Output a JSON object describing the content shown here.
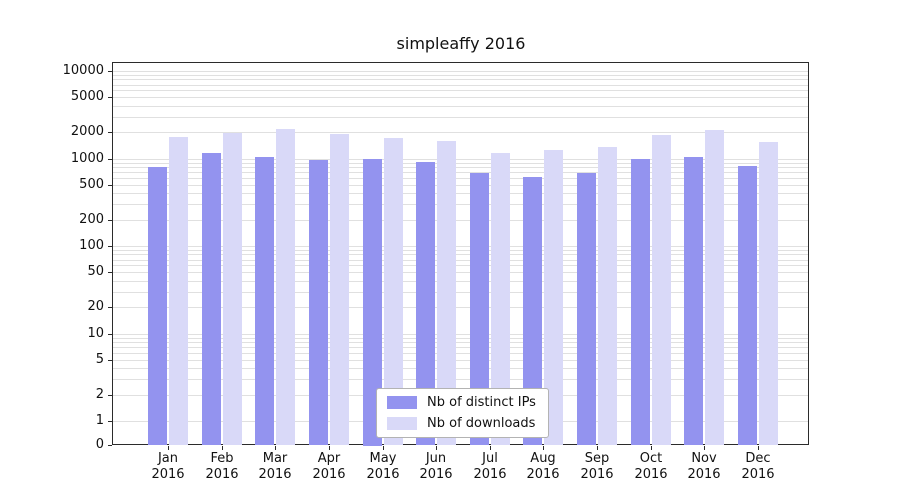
{
  "chart_data": {
    "type": "bar",
    "title": "simpleaffy 2016",
    "months": [
      "Jan",
      "Feb",
      "Mar",
      "Apr",
      "May",
      "Jun",
      "Jul",
      "Aug",
      "Sep",
      "Oct",
      "Nov",
      "Dec"
    ],
    "year_label": "2016",
    "series": [
      {
        "name": "Nb of distinct IPs",
        "color": "#9393ef",
        "values": [
          800,
          1150,
          1050,
          960,
          1000,
          920,
          680,
          620,
          690,
          990,
          1050,
          820
        ]
      },
      {
        "name": "Nb of downloads",
        "color": "#d9d9f8",
        "values": [
          1750,
          1950,
          2150,
          1900,
          1700,
          1600,
          1150,
          1250,
          1350,
          1850,
          2100,
          1550
        ]
      }
    ],
    "yscale": "symlog",
    "yticks": [
      10000,
      5000,
      2000,
      1000,
      500,
      200,
      100,
      50,
      20,
      10,
      5,
      2,
      1,
      0
    ],
    "ylim": [
      0,
      12700
    ],
    "grid": true,
    "legend_position": "lower center"
  }
}
